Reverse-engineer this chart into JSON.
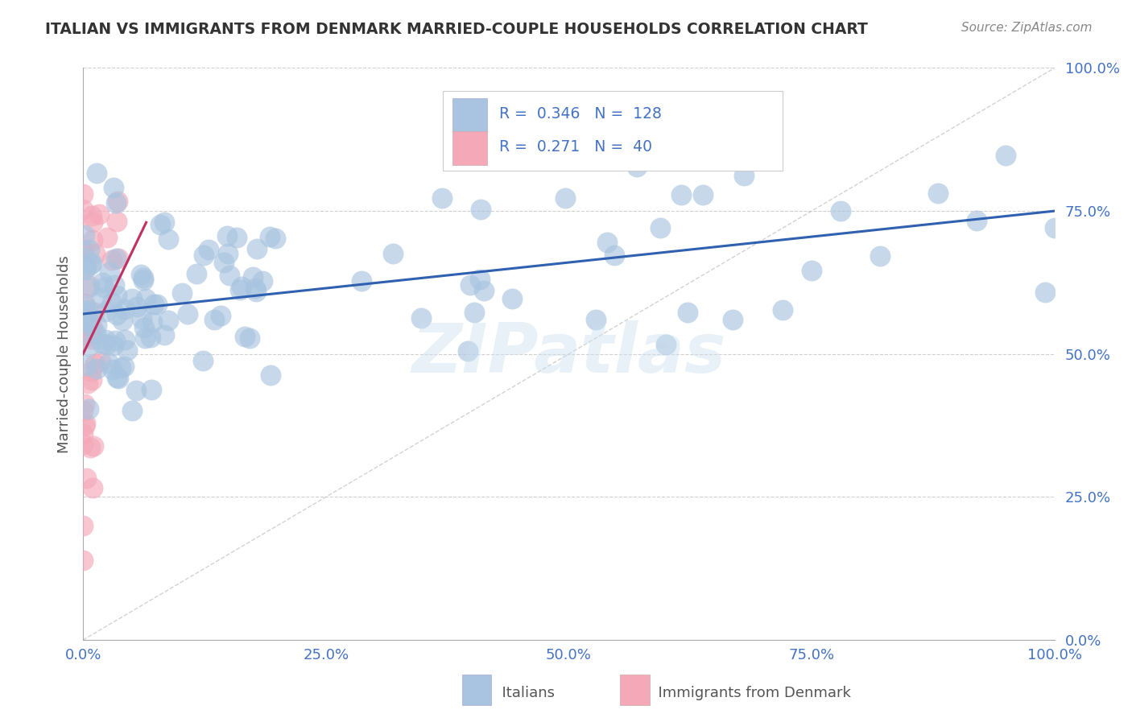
{
  "title": "ITALIAN VS IMMIGRANTS FROM DENMARK MARRIED-COUPLE HOUSEHOLDS CORRELATION CHART",
  "source_text": "Source: ZipAtlas.com",
  "ylabel": "Married-couple Households",
  "xlim": [
    0,
    1
  ],
  "ylim": [
    0,
    1
  ],
  "ytick_labels": [
    "0.0%",
    "25.0%",
    "50.0%",
    "75.0%",
    "100.0%"
  ],
  "ytick_values": [
    0,
    0.25,
    0.5,
    0.75,
    1.0
  ],
  "xtick_labels": [
    "0.0%",
    "25.0%",
    "50.0%",
    "75.0%",
    "100.0%"
  ],
  "xtick_values": [
    0,
    0.25,
    0.5,
    0.75,
    1.0
  ],
  "legend_R1": "0.346",
  "legend_N1": "128",
  "legend_R2": "0.271",
  "legend_N2": "40",
  "label1": "Italians",
  "label2": "Immigrants from Denmark",
  "color1": "#a8c4e0",
  "color2": "#f4a8b8",
  "line_color1": "#3060b0",
  "line_color2": "#c03060",
  "background_color": "#ffffff",
  "grid_color": "#d0d0d0",
  "title_color": "#333333",
  "tick_color": "#4472c4",
  "source_color": "#888888",
  "watermark": "ZIPatlas"
}
